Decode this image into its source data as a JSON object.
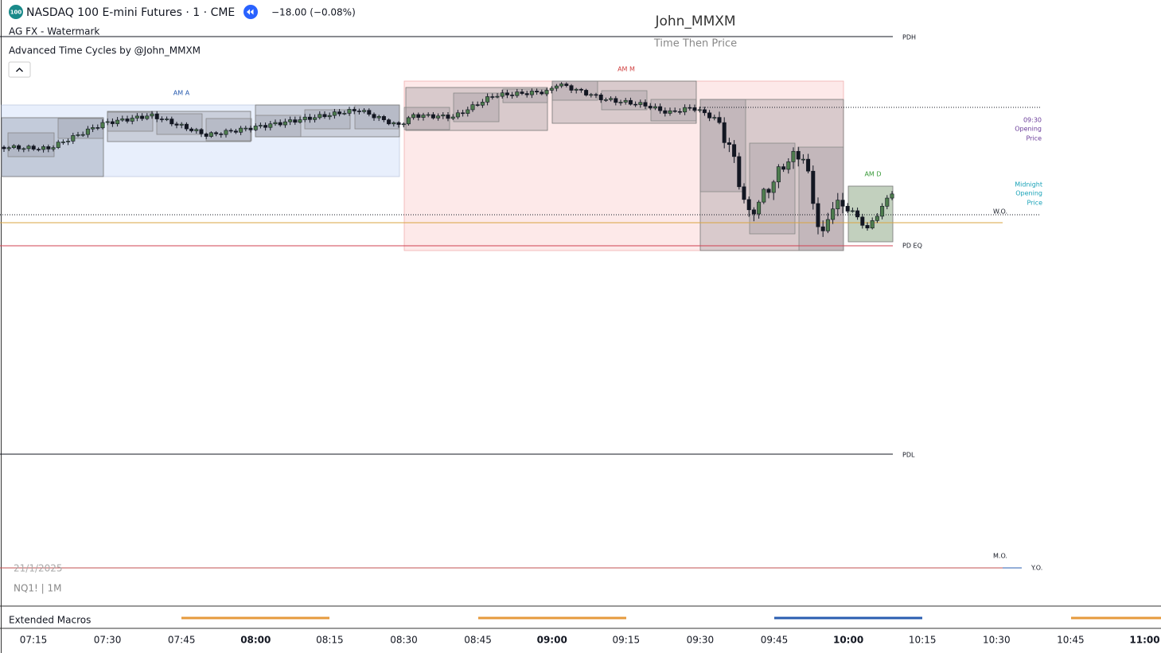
{
  "header": {
    "badge": "100",
    "symbol": "NASDAQ 100 E-mini Futures · 1 · CME",
    "change": "−18.00 (−0.08%)",
    "indicator_1": "AG FX - Watermark",
    "indicator_2": "Advanced Time Cycles by @John_MMXM"
  },
  "watermark": {
    "title": "John_MMXM",
    "subtitle": "Time Then Price",
    "date": "21/1/2025",
    "ticker": "NQ1! | 1M"
  },
  "cycles": {
    "a": "AM A",
    "m": "AM M",
    "d": "AM D"
  },
  "levels": {
    "pdh": "PDH",
    "pd_eq": "PD EQ",
    "pdl": "PDL",
    "wo": "W.O.",
    "mo": "M.O.",
    "yo": "Y.O.",
    "open_930": [
      "09:30",
      "Opening",
      "Price"
    ],
    "midnight": [
      "Midnight",
      "Opening",
      "Price"
    ]
  },
  "macros": {
    "title": "Extended Macros"
  },
  "time_axis": [
    {
      "label": "07:15",
      "bold": false
    },
    {
      "label": "07:30",
      "bold": false
    },
    {
      "label": "07:45",
      "bold": false
    },
    {
      "label": "08:00",
      "bold": true
    },
    {
      "label": "08:15",
      "bold": false
    },
    {
      "label": "08:30",
      "bold": false
    },
    {
      "label": "08:45",
      "bold": false
    },
    {
      "label": "09:00",
      "bold": true
    },
    {
      "label": "09:15",
      "bold": false
    },
    {
      "label": "09:30",
      "bold": false
    },
    {
      "label": "09:45",
      "bold": false
    },
    {
      "label": "10:00",
      "bold": true
    },
    {
      "label": "10:15",
      "bold": false
    },
    {
      "label": "10:30",
      "bold": false
    },
    {
      "label": "10:45",
      "bold": false
    },
    {
      "label": "11:00",
      "bold": true
    }
  ]
}
